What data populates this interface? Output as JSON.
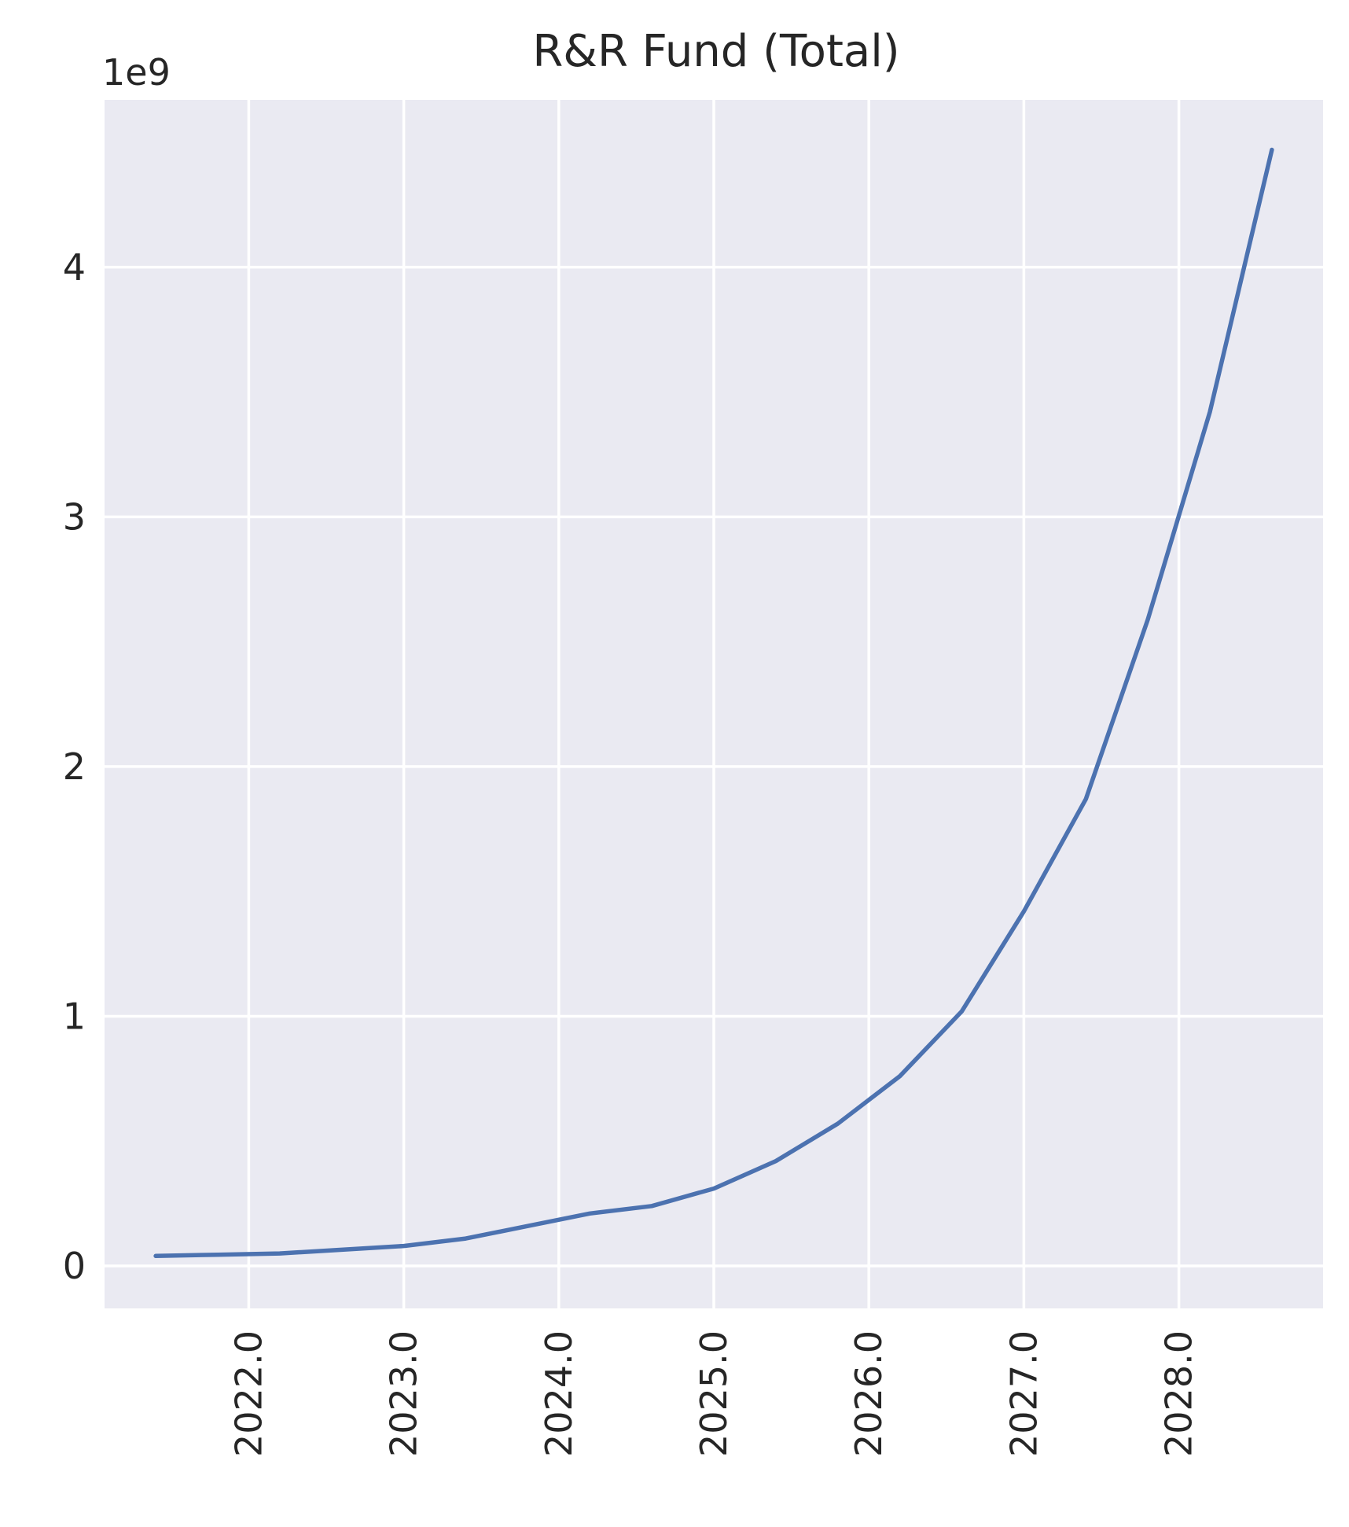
{
  "chart_data": {
    "type": "line",
    "title": "R&R Fund (Total)",
    "xlabel": "",
    "ylabel": "",
    "y_offset_label": "1e9",
    "x_ticks": [
      2022.0,
      2023.0,
      2024.0,
      2025.0,
      2026.0,
      2027.0,
      2028.0
    ],
    "x_tick_labels": [
      "2022.0",
      "2023.0",
      "2024.0",
      "2025.0",
      "2026.0",
      "2027.0",
      "2028.0"
    ],
    "x_tick_rotation": "vertical",
    "y_ticks": [
      0,
      1,
      2,
      3,
      4
    ],
    "y_tick_labels": [
      "0",
      "1",
      "2",
      "3",
      "4"
    ],
    "xlim": [
      2021.07,
      2028.93
    ],
    "ylim": [
      -0.17,
      4.67
    ],
    "y_unit_scale": 1000000000,
    "grid": true,
    "background": "#eaeaf2",
    "series": [
      {
        "color": "#4c72b0",
        "x": [
          2021.4,
          2021.8,
          2022.2,
          2022.6,
          2023.0,
          2023.4,
          2023.8,
          2024.2,
          2024.6,
          2025.0,
          2025.4,
          2025.8,
          2026.2,
          2026.6,
          2027.0,
          2027.4,
          2027.8,
          2028.2,
          2028.6
        ],
        "y": [
          0.04,
          0.045,
          0.05,
          0.065,
          0.08,
          0.11,
          0.16,
          0.21,
          0.24,
          0.31,
          0.42,
          0.57,
          0.76,
          1.02,
          1.42,
          1.87,
          2.59,
          3.42,
          4.47
        ]
      }
    ]
  }
}
